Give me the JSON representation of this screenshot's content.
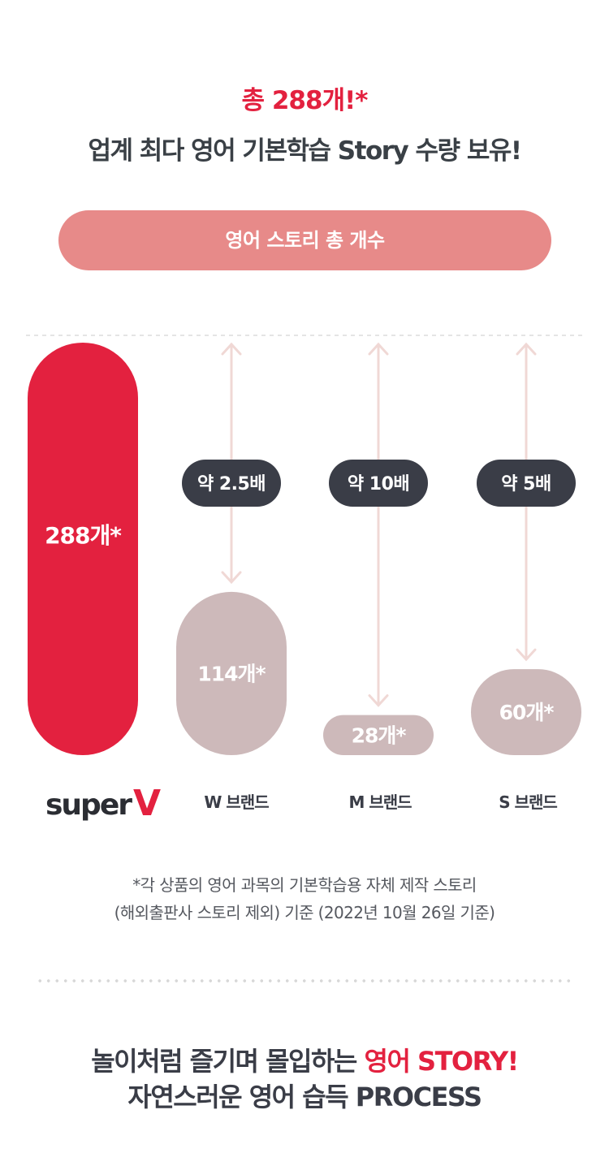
{
  "header": {
    "line1": "총 288개!*",
    "line2": "업계 최다 영어 기본학습  Story 수량 보유!"
  },
  "banner": {
    "label": "영어 스토리 총 개수"
  },
  "colors": {
    "accent": "#e3213f",
    "banner": "#e78a89",
    "bar_secondary": "#cdb9ba",
    "ratio_pill": "#3a3d47",
    "arrow": "#f0d8d5"
  },
  "chart_data": {
    "type": "bar",
    "categories": [
      "superV",
      "W 브랜드",
      "M 브랜드",
      "S 브랜드"
    ],
    "values": [
      288,
      114,
      28,
      60
    ],
    "value_labels": [
      "288개*",
      "114개*",
      "28개*",
      "60개*"
    ],
    "ratios": [
      null,
      "약 2.5배",
      "약 10배",
      "약 5배"
    ],
    "ylim": [
      0,
      288
    ],
    "title": "영어 스토리 총 개수",
    "xlabel": "",
    "ylabel": "",
    "grid": false,
    "legend": "none"
  },
  "footnote": {
    "line1": "*각 상품의 영어 과목의 기본학습용 자체 제작 스토리",
    "line2": "(해외출판사 스토리 제외) 기준 (2022년 10월 26일 기준)"
  },
  "bottom": {
    "line1_prefix": "놀이처럼 즐기며 몰입하는 ",
    "line1_accent": "영어 STORY!",
    "line2": "자연스러운 영어 습득 PROCESS"
  }
}
